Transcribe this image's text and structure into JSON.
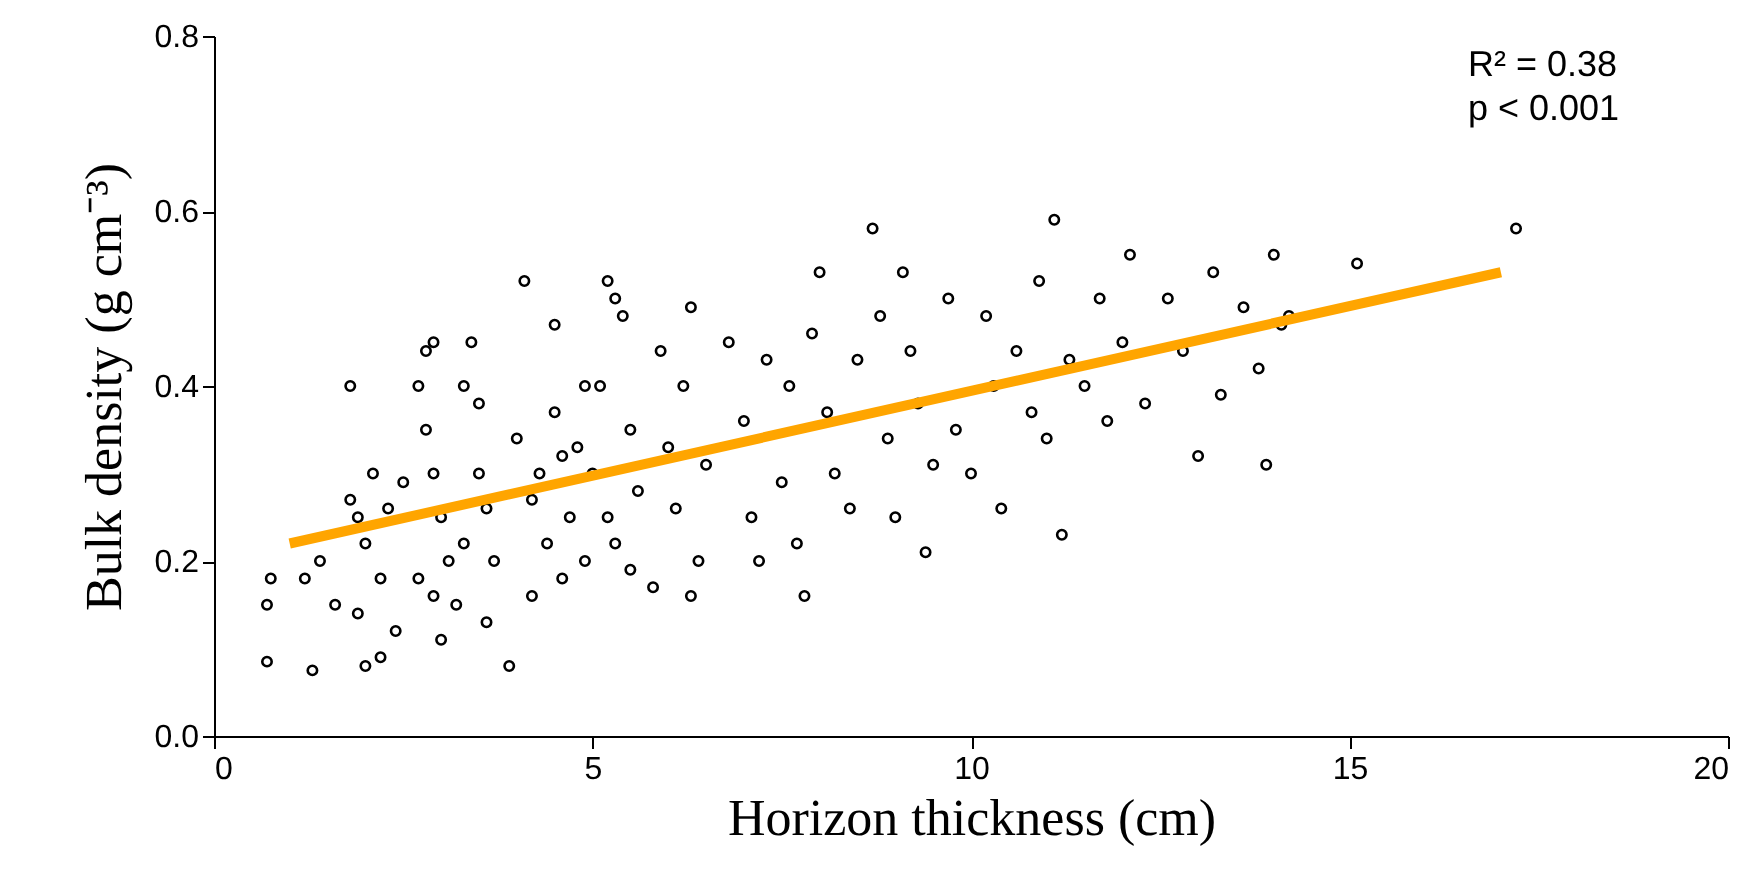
{
  "chart_data": {
    "type": "scatter",
    "xlabel": "Horizon thickness (cm)",
    "ylabel": "Bulk density (g cm⁻³)",
    "xlim": [
      0,
      20
    ],
    "xticks": [
      0,
      5,
      10,
      15,
      20
    ],
    "ylim": [
      0,
      0.8
    ],
    "yticks": [
      {
        "value": 0,
        "label": "0.0"
      },
      {
        "value": 0.2,
        "label": "0.2"
      },
      {
        "value": 0.4,
        "label": "0.4"
      },
      {
        "value": 0.6,
        "label": "0.6"
      },
      {
        "value": 0.8,
        "label": "0.8"
      }
    ],
    "grid": false,
    "annotations": [
      "R² = 0.38",
      "p < 0.001"
    ],
    "series": [
      {
        "type": "scatter",
        "color": "#000000",
        "marker": "circle",
        "x": [
          0.7,
          0.75,
          0.7,
          1.3,
          1.2,
          1.4,
          1.6,
          1.8,
          1.8,
          1.9,
          2.0,
          2.1,
          2.2,
          2.2,
          2.3,
          1.9,
          2.4,
          2.5,
          2.0,
          2.8,
          2.9,
          2.7,
          2.8,
          2.9,
          3.0,
          3.1,
          2.7,
          3.2,
          3.4,
          3.3,
          3.5,
          3.5,
          3.3,
          3.0,
          2.9,
          3.6,
          3.6,
          3.7,
          3.9,
          4.1,
          4.0,
          4.2,
          4.3,
          4.4,
          4.2,
          4.6,
          4.7,
          4.8,
          4.9,
          4.6,
          4.5,
          4.9,
          4.5,
          5.2,
          5.3,
          5.4,
          5.1,
          5.0,
          5.2,
          5.3,
          5.5,
          5.5,
          5.6,
          5.8,
          5.9,
          6.0,
          6.1,
          6.3,
          6.2,
          6.4,
          6.5,
          6.3,
          6.8,
          7.0,
          7.1,
          7.2,
          7.3,
          7.5,
          7.6,
          7.8,
          7.9,
          8.0,
          8.1,
          7.7,
          8.2,
          8.4,
          8.5,
          8.7,
          8.8,
          8.9,
          9.0,
          9.1,
          9.2,
          9.3,
          9.4,
          9.5,
          9.7,
          9.8,
          10.0,
          10.2,
          10.4,
          10.3,
          10.6,
          10.8,
          10.9,
          11.0,
          11.1,
          11.2,
          11.3,
          11.5,
          11.7,
          11.8,
          12.0,
          12.1,
          12.3,
          12.6,
          12.8,
          13.0,
          13.2,
          13.3,
          13.6,
          13.8,
          13.9,
          14.0,
          14.1,
          14.2,
          15.1,
          17.2
        ],
        "values": [
          0.15,
          0.18,
          0.085,
          0.075,
          0.18,
          0.2,
          0.15,
          0.4,
          0.27,
          0.25,
          0.22,
          0.3,
          0.18,
          0.09,
          0.26,
          0.14,
          0.12,
          0.29,
          0.08,
          0.44,
          0.45,
          0.4,
          0.35,
          0.3,
          0.25,
          0.2,
          0.18,
          0.15,
          0.45,
          0.4,
          0.38,
          0.3,
          0.22,
          0.11,
          0.16,
          0.13,
          0.26,
          0.2,
          0.08,
          0.52,
          0.34,
          0.27,
          0.3,
          0.22,
          0.16,
          0.18,
          0.25,
          0.33,
          0.4,
          0.32,
          0.37,
          0.2,
          0.47,
          0.52,
          0.5,
          0.48,
          0.4,
          0.3,
          0.25,
          0.22,
          0.35,
          0.19,
          0.28,
          0.17,
          0.44,
          0.33,
          0.26,
          0.49,
          0.4,
          0.2,
          0.31,
          0.16,
          0.45,
          0.36,
          0.25,
          0.2,
          0.43,
          0.29,
          0.4,
          0.16,
          0.46,
          0.53,
          0.37,
          0.22,
          0.3,
          0.26,
          0.43,
          0.58,
          0.48,
          0.34,
          0.25,
          0.53,
          0.44,
          0.38,
          0.21,
          0.31,
          0.5,
          0.35,
          0.3,
          0.48,
          0.26,
          0.4,
          0.44,
          0.37,
          0.52,
          0.34,
          0.59,
          0.23,
          0.43,
          0.4,
          0.5,
          0.36,
          0.45,
          0.55,
          0.38,
          0.5,
          0.44,
          0.32,
          0.53,
          0.39,
          0.49,
          0.42,
          0.31,
          0.55,
          0.47,
          0.48,
          0.54,
          0.58
        ]
      },
      {
        "type": "line",
        "color": "#ffa500",
        "x": [
          1.0,
          17.0
        ],
        "values": [
          0.22,
          0.53
        ]
      }
    ]
  }
}
